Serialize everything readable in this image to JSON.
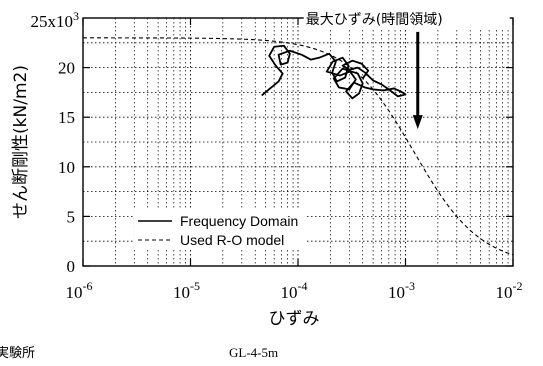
{
  "chart_data": {
    "type": "line",
    "x_scale": "log",
    "xlim": [
      1e-06,
      0.01
    ],
    "ylim": [
      0,
      25
    ],
    "x_ticks": [
      1e-06,
      1e-05,
      0.0001,
      0.001,
      0.01
    ],
    "x_tick_labels": [
      {
        "base": "10",
        "exp": "-6"
      },
      {
        "base": "10",
        "exp": "-5"
      },
      {
        "base": "10",
        "exp": "-4"
      },
      {
        "base": "10",
        "exp": "-3"
      },
      {
        "base": "10",
        "exp": "-2"
      }
    ],
    "y_ticks": [
      0,
      5,
      10,
      15,
      20
    ],
    "y_tick_labels": [
      "0",
      "5",
      "10",
      "15",
      "20"
    ],
    "y_top_label": {
      "base": "25x10",
      "exp": "3"
    },
    "grid": true,
    "xlabel": "ひずみ",
    "ylabel": "せん断剛性(kN/m2)",
    "legend_position": "lower-left",
    "series": [
      {
        "name": "Frequency Domain",
        "style": "solid",
        "color": "#000000",
        "points": [
          [
            4.6e-05,
            17.2
          ],
          [
            5.5e-05,
            17.9
          ],
          [
            6.6e-05,
            18.6
          ],
          [
            7.2e-05,
            19.4
          ],
          [
            6.2e-05,
            20.2
          ],
          [
            5.4e-05,
            21.2
          ],
          [
            6e-05,
            22.1
          ],
          [
            7.4e-05,
            22.2
          ],
          [
            8.4e-05,
            21.4
          ],
          [
            8e-05,
            20.5
          ],
          [
            6.9e-05,
            20.3
          ],
          [
            6.6e-05,
            21.3
          ],
          [
            8.4e-05,
            21.7
          ],
          [
            0.000108,
            21.3
          ],
          [
            0.000132,
            20.8
          ],
          [
            0.000158,
            21.0
          ],
          [
            0.000195,
            21.4
          ],
          [
            0.000225,
            20.6
          ],
          [
            0.000208,
            19.5
          ],
          [
            0.00023,
            18.6
          ],
          [
            0.000275,
            19.0
          ],
          [
            0.000295,
            20.2
          ],
          [
            0.00026,
            21.0
          ],
          [
            0.00021,
            20.6
          ],
          [
            0.000185,
            19.6
          ],
          [
            0.000245,
            19.2
          ],
          [
            0.000305,
            19.6
          ],
          [
            0.000345,
            18.8
          ],
          [
            0.0003,
            17.8
          ],
          [
            0.00024,
            18.0
          ],
          [
            0.000215,
            18.9
          ],
          [
            0.00026,
            19.9
          ],
          [
            0.00036,
            19.4
          ],
          [
            0.0004,
            18.4
          ],
          [
            0.00037,
            17.4
          ],
          [
            0.00032,
            16.9
          ],
          [
            0.00028,
            17.6
          ],
          [
            0.00033,
            18.5
          ],
          [
            0.00042,
            18.0
          ],
          [
            0.0005,
            17.8
          ],
          [
            0.00063,
            17.7
          ],
          [
            0.00078,
            17.9
          ],
          [
            0.0009,
            17.6
          ],
          [
            0.001,
            17.3
          ],
          [
            0.00085,
            17.1
          ],
          [
            0.00072,
            17.7
          ],
          [
            0.0006,
            18.3
          ],
          [
            0.0005,
            18.7
          ],
          [
            0.00042,
            19.5
          ],
          [
            0.00036,
            20.0
          ],
          [
            0.0003,
            19.8
          ],
          [
            0.00026,
            20.2
          ],
          [
            0.00032,
            20.7
          ],
          [
            0.00039,
            20.4
          ],
          [
            0.00045,
            19.7
          ],
          [
            0.0004,
            18.9
          ]
        ]
      },
      {
        "name": "Used R-O model",
        "style": "dashed",
        "color": "#000000",
        "model": {
          "G0": 23.0,
          "gamma_ref": 0.0012,
          "alpha": 1.4
        }
      }
    ],
    "annotation": {
      "text": "最大ひずみ(時間領域)",
      "arrow_x": 0.0013,
      "arrow_y_from": 24.0,
      "arrow_y_to": 13.8
    }
  },
  "captions": {
    "left": "実験所",
    "right": "GL-4-5m"
  }
}
